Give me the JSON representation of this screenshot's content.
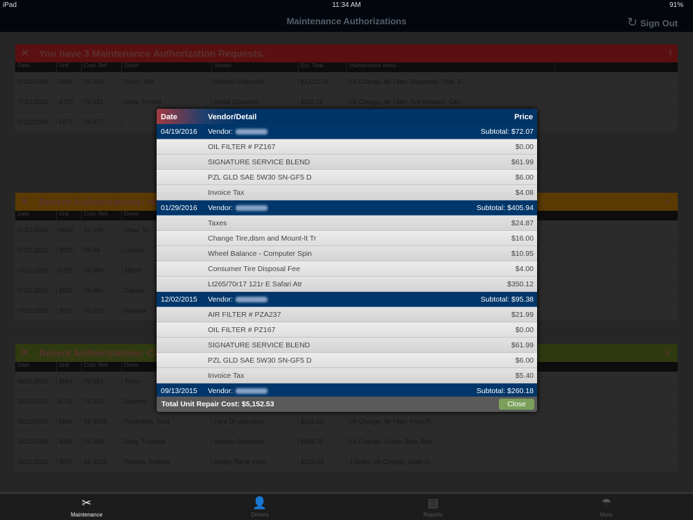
{
  "status": {
    "device": "iPad",
    "time": "11:34 AM",
    "battery": "91%"
  },
  "nav": {
    "title": "Maintenance Authorizations",
    "sign_out": "Sign Out"
  },
  "background": {
    "panels": [
      {
        "title": "You have 3 Maintenance Authorization Requests.",
        "color": "#5a1010",
        "columns": [
          "Date",
          "Unit",
          "Cust. Ref.",
          "Driver",
          "Vendor",
          "Est. Total",
          "Maintenance Items"
        ],
        "rows": [
          [
            "07/21/2016",
            "6086",
            "76-183",
            "Gucci, Bob",
            "Preston Chevrolet",
            "$1,012.28",
            "Oil Change, Air Filter, Diagnostic Time, F..."
          ],
          [
            "07/21/2016",
            "8720",
            "76-282",
            "Sibia, Tyndell",
            "Wood Chevrolet",
            "$112.72",
            "Oil Change, Air Filter, Tire Rotation, Cab..."
          ],
          [
            "07/12/2016",
            "6275",
            "76-577",
            "",
            "",
            "",
            ""
          ]
        ]
      },
      {
        "title": "Recent Authorizations: Not",
        "color": "#5a3a00",
        "columns": [
          "Date",
          "Unit",
          "Cust. Ref.",
          "Driver"
        ],
        "rows": [
          [
            "07/21/2016",
            "8650",
            "51-190",
            "Shap, Te"
          ],
          [
            "07/21/2016",
            "8833",
            "89-04",
            "Luxens"
          ],
          [
            "07/21/2016",
            "6725",
            "76-580",
            "18020"
          ],
          [
            "07/21/2016",
            "8835",
            "76-080",
            "Callata"
          ],
          [
            "07/21/2016",
            "8071",
            "76-627",
            "Rodovia"
          ]
        ]
      },
      {
        "title": "Recent Authorizations: Com",
        "color": "#2f3a10",
        "columns": [
          "Date",
          "Unit",
          "Cust. Ref.",
          "Driver"
        ],
        "rows": [
          [
            "06/21/2016",
            "8664",
            "76-183",
            "Tosim",
            "",
            "",
            ""
          ],
          [
            "06/21/2016",
            "6715",
            "76-373",
            "Eberstel",
            "",
            "",
            ""
          ],
          [
            "06/23/2016",
            "6686",
            "81-9328",
            "Porterfield, Todd",
            "Ford Of Uberdeen",
            "$326.63",
            "Oil Change, Air Filter, Front R..."
          ],
          [
            "06/21/2016",
            "8325",
            "76-168",
            "Greg, Trumball",
            "Watson Chevrolet",
            "$896.75",
            "Oil Change, Corner Bulb, Rea..."
          ],
          [
            "06/21/2016",
            "8097",
            "81-9328",
            "Rackett, Andrew",
            "Bobby Rahal Volvo",
            "$224.04",
            "4 Bulbs, Oil Change, State In..."
          ]
        ]
      }
    ]
  },
  "modal": {
    "headers": {
      "date": "Date",
      "vendor": "Vendor/Detail",
      "price": "Price"
    },
    "groups": [
      {
        "date": "04/19/2016",
        "vendor": "Vendor:",
        "subtotal": "Subtotal: $72.07",
        "items": [
          {
            "desc": "OIL FILTER # PZ167",
            "price": "$0.00"
          },
          {
            "desc": "SIGNATURE SERVICE BLEND",
            "price": "$61.99"
          },
          {
            "desc": "PZL GLD SAE 5W30 SN-GF5 D",
            "price": "$6.00"
          },
          {
            "desc": "Invoice Tax",
            "price": "$4.08"
          }
        ]
      },
      {
        "date": "01/29/2016",
        "vendor": "Vendor:",
        "subtotal": "Subtotal: $405.94",
        "items": [
          {
            "desc": "Taxes",
            "price": "$24.87"
          },
          {
            "desc": "Change Tire,dism and Mount-It Tr",
            "price": "$16.00"
          },
          {
            "desc": "Wheel Balance - Computer Spin",
            "price": "$10.95"
          },
          {
            "desc": "Consumer Tire Disposal Fee",
            "price": "$4.00"
          },
          {
            "desc": "Lt265/70r17  121r E Safari Atr",
            "price": "$350.12"
          }
        ]
      },
      {
        "date": "12/02/2015",
        "vendor": "Vendor:",
        "subtotal": "Subtotal: $95.38",
        "items": [
          {
            "desc": "AIR FILTER # PZA237",
            "price": "$21.99"
          },
          {
            "desc": "OIL FILTER # PZ167",
            "price": "$0.00"
          },
          {
            "desc": "SIGNATURE SERVICE BLEND",
            "price": "$61.99"
          },
          {
            "desc": "PZL GLD SAE 5W30 SN-GF5 D",
            "price": "$6.00"
          },
          {
            "desc": "Invoice Tax",
            "price": "$5.40"
          }
        ]
      },
      {
        "date": "09/13/2015",
        "vendor": "Vendor:",
        "subtotal": "Subtotal: $260.18",
        "items": []
      }
    ],
    "total": "Total Unit Repair Cost: $5,152.53",
    "close": "Close"
  },
  "tabs": [
    {
      "label": "Maintenance",
      "icon": "wrench-screwdriver-icon",
      "active": true
    },
    {
      "label": "Drivers",
      "icon": "person-icon"
    },
    {
      "label": "Reports",
      "icon": "clipboard-icon"
    },
    {
      "label": "More",
      "icon": "umbrella-icon"
    }
  ]
}
